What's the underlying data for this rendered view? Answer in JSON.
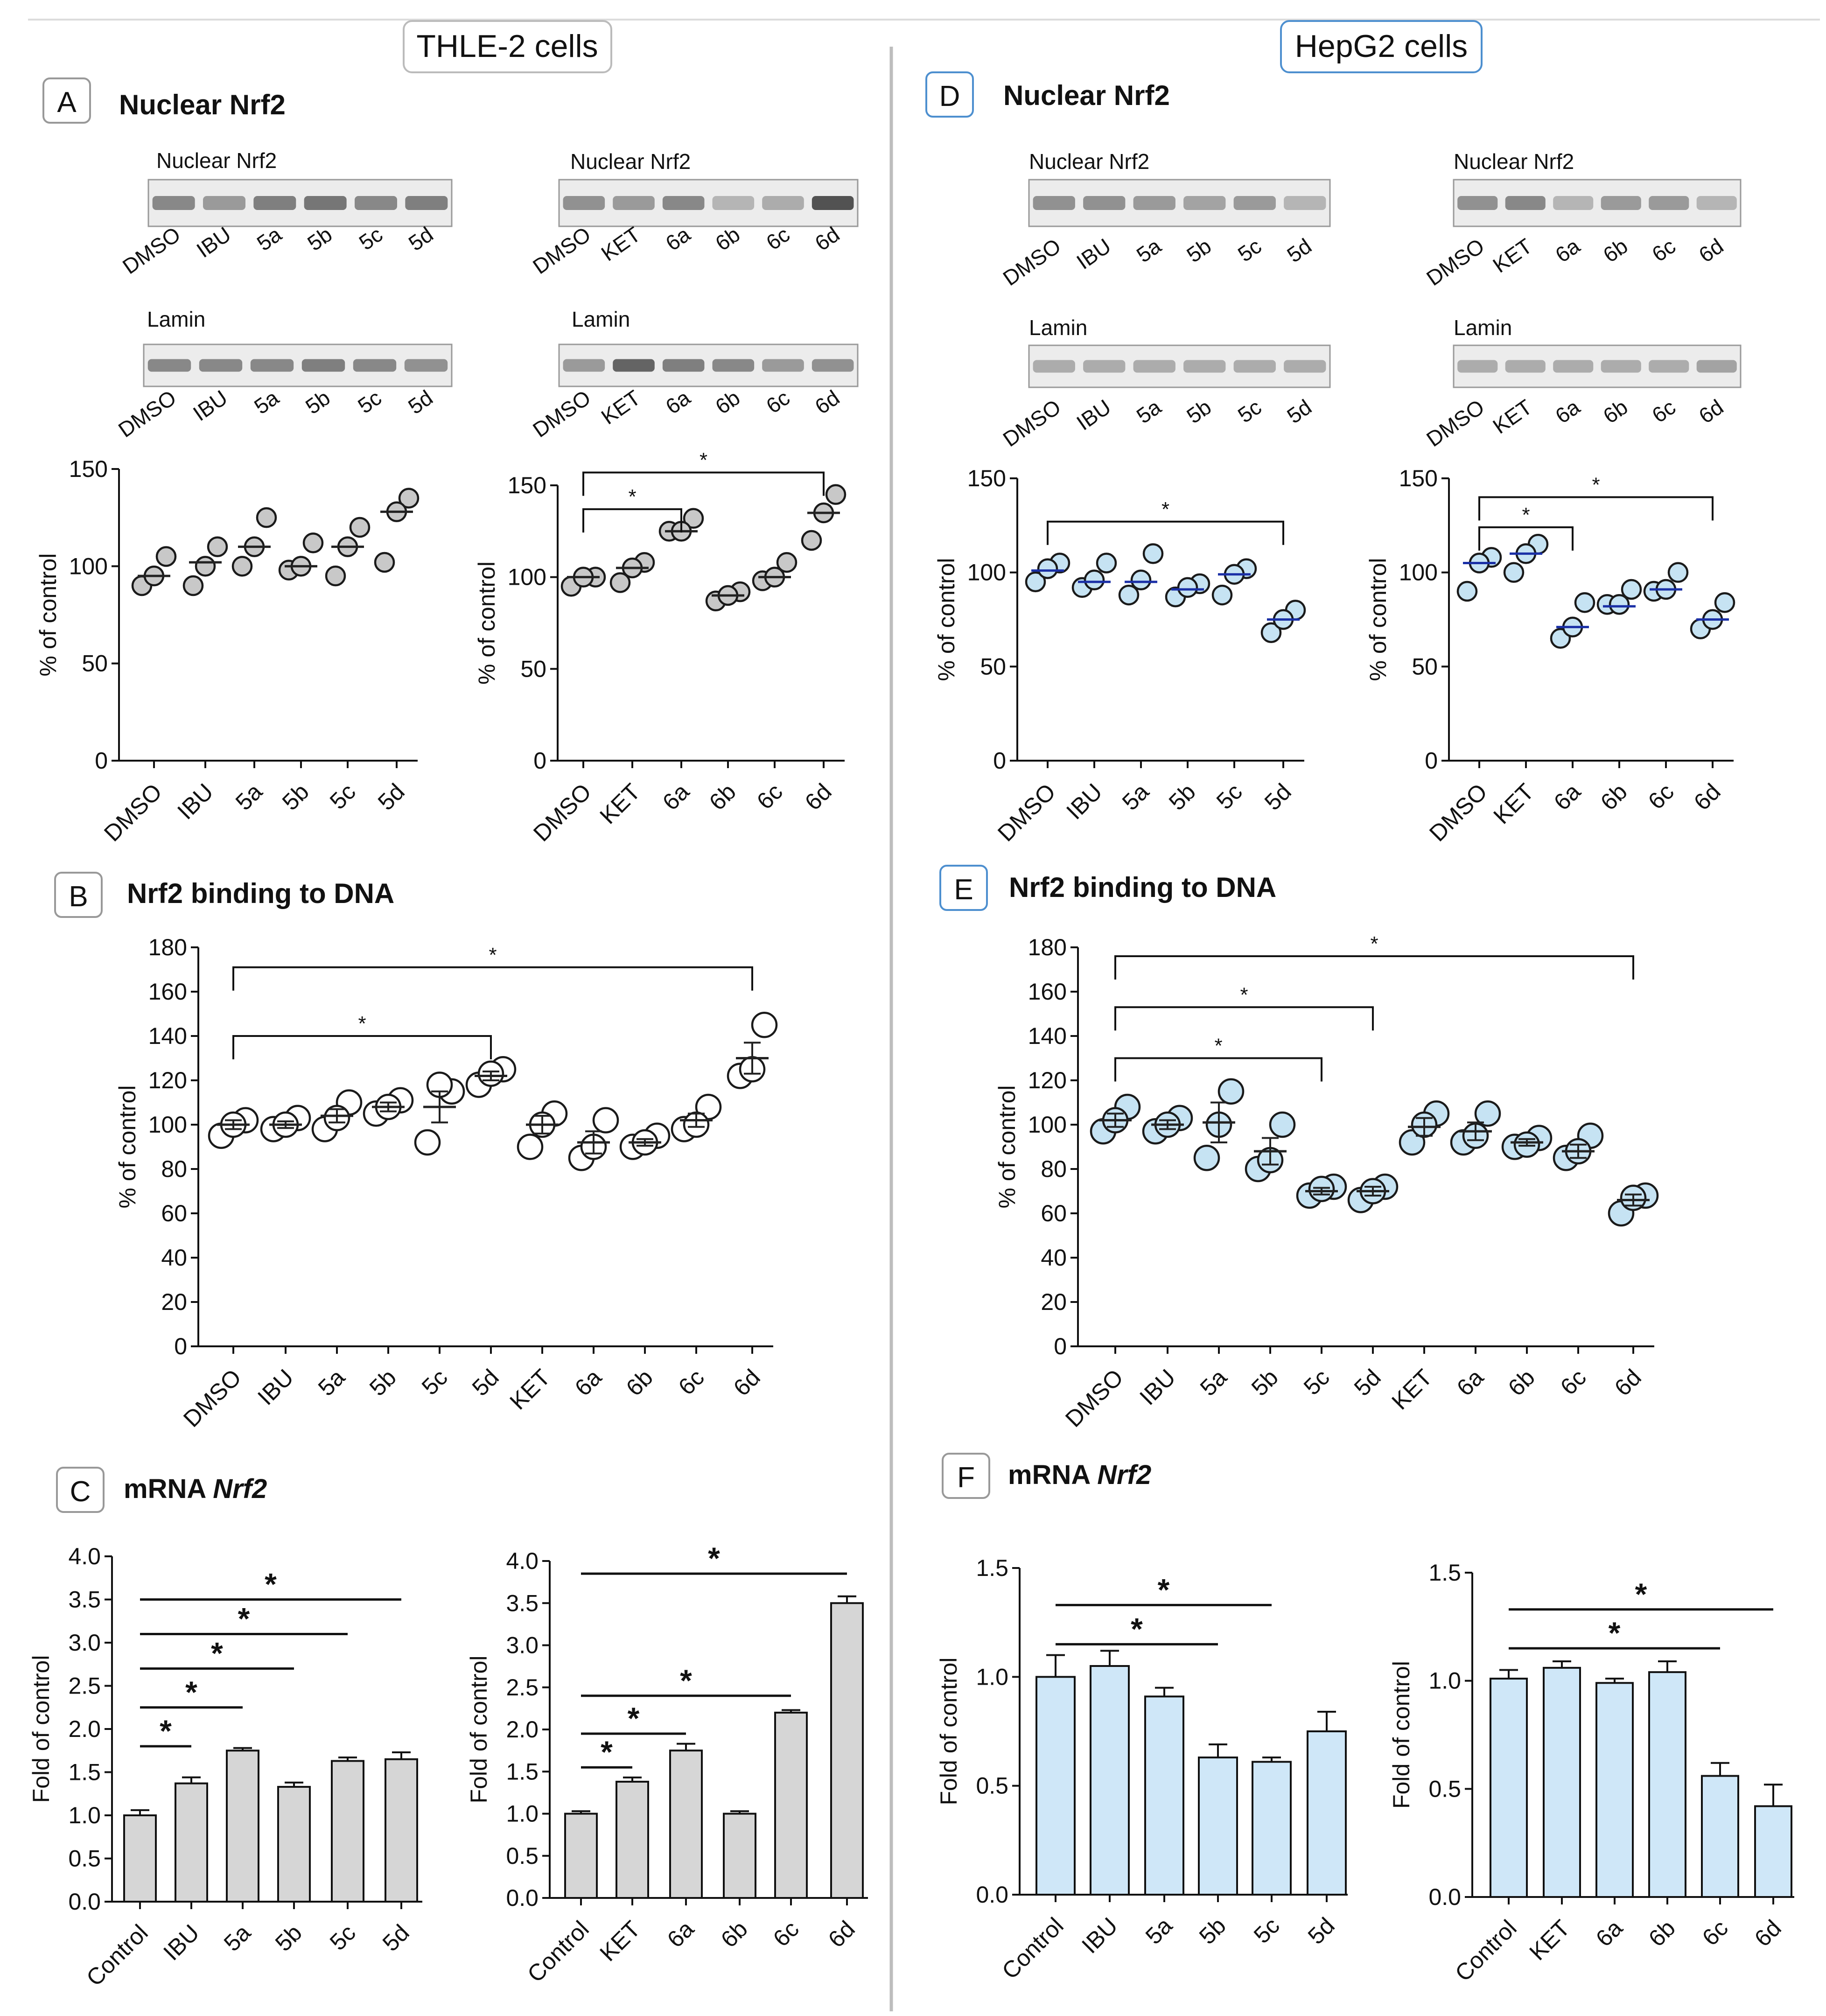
{
  "headers": {
    "left": "THLE-2 cells",
    "right": "HepG2 cells"
  },
  "panels": {
    "A": {
      "letter": "A",
      "title": "Nuclear Nrf2"
    },
    "B": {
      "letter": "B",
      "title": "Nrf2 binding to DNA"
    },
    "C": {
      "letter": "C",
      "title_prefix": "mRNA ",
      "title_italic": "Nrf2"
    },
    "D": {
      "letter": "D",
      "title": "Nuclear Nrf2"
    },
    "E": {
      "letter": "E",
      "title": "Nrf2 binding to DNA"
    },
    "F": {
      "letter": "F",
      "title_prefix": "mRNA ",
      "title_italic": "Nrf2"
    }
  },
  "blots": [
    {
      "label": "Nuclear Nrf2",
      "lanes": [
        "DMSO",
        "IBU",
        "5a",
        "5b",
        "5c",
        "5d"
      ],
      "intensity": [
        0.55,
        0.45,
        0.6,
        0.65,
        0.55,
        0.6
      ]
    },
    {
      "label": "Nuclear Nrf2",
      "lanes": [
        "DMSO",
        "KET",
        "6a",
        "6b",
        "6c",
        "6d"
      ],
      "intensity": [
        0.5,
        0.45,
        0.55,
        0.3,
        0.35,
        0.85
      ]
    },
    {
      "label": "Lamin",
      "lanes": [
        "DMSO",
        "IBU",
        "5a",
        "5b",
        "5c",
        "5d"
      ],
      "intensity": [
        0.55,
        0.55,
        0.55,
        0.6,
        0.55,
        0.5
      ]
    },
    {
      "label": "Lamin",
      "lanes": [
        "DMSO",
        "KET",
        "6a",
        "6b",
        "6c",
        "6d"
      ],
      "intensity": [
        0.45,
        0.75,
        0.6,
        0.55,
        0.45,
        0.5
      ]
    },
    {
      "label": "Nuclear Nrf2",
      "lanes": [
        "DMSO",
        "IBU",
        "5a",
        "5b",
        "5c",
        "5d"
      ],
      "intensity": [
        0.5,
        0.5,
        0.45,
        0.4,
        0.45,
        0.3
      ]
    },
    {
      "label": "Nuclear Nrf2",
      "lanes": [
        "DMSO",
        "KET",
        "6a",
        "6b",
        "6c",
        "6d"
      ],
      "intensity": [
        0.5,
        0.55,
        0.3,
        0.45,
        0.45,
        0.3
      ]
    },
    {
      "label": "Lamin",
      "lanes": [
        "DMSO",
        "IBU",
        "5a",
        "5b",
        "5c",
        "5d"
      ],
      "intensity": [
        0.35,
        0.35,
        0.35,
        0.35,
        0.35,
        0.35
      ]
    },
    {
      "label": "Lamin",
      "lanes": [
        "DMSO",
        "KET",
        "6a",
        "6b",
        "6c",
        "6d"
      ],
      "intensity": [
        0.35,
        0.35,
        0.35,
        0.35,
        0.35,
        0.4
      ]
    }
  ],
  "colors": {
    "grey_point": "#c8c8c8",
    "blue_point": "#c6e3f3",
    "blue_mean": "#1a2fa6",
    "grey_bar": "#d6d6d6",
    "blue_bar": "#cfe7f8",
    "panel_border_blue": "#4d8fcf"
  },
  "chart_data": [
    {
      "id": "A-left",
      "type": "scatter",
      "categories": [
        "DMSO",
        "IBU",
        "5a",
        "5b",
        "5c",
        "5d"
      ],
      "points": [
        [
          90,
          105,
          95
        ],
        [
          90,
          110,
          100
        ],
        [
          100,
          125,
          110
        ],
        [
          98,
          112,
          100
        ],
        [
          95,
          120,
          110
        ],
        [
          102,
          135,
          128
        ]
      ],
      "means": [
        95,
        102,
        110,
        100,
        110,
        128
      ],
      "ylabel": "% of control",
      "ylim": [
        0,
        150
      ],
      "yticks": [
        0,
        50,
        100,
        150
      ],
      "significance": []
    },
    {
      "id": "A-right",
      "type": "scatter",
      "categories": [
        "DMSO",
        "KET",
        "6a",
        "6b",
        "6c",
        "6d"
      ],
      "points": [
        [
          95,
          100,
          100
        ],
        [
          97,
          108,
          105
        ],
        [
          125,
          132,
          125
        ],
        [
          87,
          92,
          90
        ],
        [
          98,
          108,
          100
        ],
        [
          120,
          145,
          135
        ]
      ],
      "means": [
        100,
        105,
        125,
        90,
        100,
        135
      ],
      "ylabel": "% of control",
      "ylim": [
        0,
        150
      ],
      "yticks": [
        0,
        50,
        100,
        150
      ],
      "significance": [
        {
          "from": 0,
          "to": 2,
          "label": "*",
          "y": 137
        },
        {
          "from": 0,
          "to": 5,
          "label": "*",
          "y": 157
        }
      ]
    },
    {
      "id": "D-left",
      "type": "scatter",
      "categories": [
        "DMSO",
        "IBU",
        "5a",
        "5b",
        "5c",
        "5d"
      ],
      "points": [
        [
          95,
          105,
          102
        ],
        [
          92,
          105,
          96
        ],
        [
          88,
          110,
          96
        ],
        [
          87,
          94,
          92
        ],
        [
          88,
          102,
          99
        ],
        [
          68,
          80,
          75
        ]
      ],
      "means": [
        101,
        95,
        95,
        91,
        99,
        75
      ],
      "ylabel": "% of control",
      "ylim": [
        0,
        150
      ],
      "yticks": [
        0,
        50,
        100,
        150
      ],
      "significance": [
        {
          "from": 0,
          "to": 5,
          "label": "*",
          "y": 127
        }
      ]
    },
    {
      "id": "D-right",
      "type": "scatter",
      "categories": [
        "DMSO",
        "KET",
        "6a",
        "6b",
        "6c",
        "6d"
      ],
      "points": [
        [
          90,
          108,
          105
        ],
        [
          100,
          115,
          110
        ],
        [
          65,
          84,
          71
        ],
        [
          83,
          91,
          83
        ],
        [
          90,
          100,
          91
        ],
        [
          70,
          84,
          75
        ]
      ],
      "means": [
        105,
        110,
        71,
        82,
        91,
        75
      ],
      "ylabel": "% of control",
      "ylim": [
        0,
        150
      ],
      "yticks": [
        0,
        50,
        100,
        150
      ],
      "significance": [
        {
          "from": 0,
          "to": 2,
          "label": "*",
          "y": 124
        },
        {
          "from": 0,
          "to": 5,
          "label": "*",
          "y": 140
        }
      ]
    },
    {
      "id": "B",
      "type": "scatter",
      "categories": [
        "DMSO",
        "IBU",
        "5a",
        "5b",
        "5c",
        "5d",
        "KET",
        "6a",
        "6b",
        "6c",
        "6d"
      ],
      "points": [
        [
          95,
          102,
          100
        ],
        [
          98,
          103,
          100
        ],
        [
          98,
          110,
          103
        ],
        [
          105,
          111,
          108
        ],
        [
          92,
          115,
          118
        ],
        [
          118,
          125,
          123
        ],
        [
          90,
          105,
          100
        ],
        [
          85,
          102,
          90
        ],
        [
          90,
          95,
          92
        ],
        [
          98,
          108,
          100
        ],
        [
          122,
          145,
          125
        ]
      ],
      "means": [
        100,
        100,
        104,
        108,
        108,
        122,
        100,
        92,
        92,
        102,
        130
      ],
      "sem": [
        2,
        1.5,
        3,
        2,
        7,
        2,
        4,
        5,
        1.5,
        3,
        7
      ],
      "ylabel": "% of control",
      "ylim": [
        0,
        180
      ],
      "yticks": [
        0,
        20,
        40,
        60,
        80,
        100,
        120,
        140,
        160,
        180
      ],
      "significance": [
        {
          "from": 0,
          "to": 5,
          "label": "*",
          "y": 140
        },
        {
          "from": 0,
          "to": 10,
          "label": "*",
          "y": 171
        }
      ]
    },
    {
      "id": "E",
      "type": "scatter",
      "categories": [
        "DMSO",
        "IBU",
        "5a",
        "5b",
        "5c",
        "5d",
        "KET",
        "6a",
        "6b",
        "6c",
        "6d"
      ],
      "points": [
        [
          97,
          108,
          102
        ],
        [
          97,
          103,
          100
        ],
        [
          85,
          115,
          100
        ],
        [
          80,
          100,
          84
        ],
        [
          68,
          72,
          71
        ],
        [
          66,
          72,
          70
        ],
        [
          92,
          105,
          100
        ],
        [
          92,
          105,
          95
        ],
        [
          90,
          94,
          91
        ],
        [
          85,
          95,
          88
        ],
        [
          60,
          68,
          67
        ]
      ],
      "means": [
        102,
        100,
        101,
        88,
        70,
        70,
        99,
        97,
        92,
        88,
        66
      ],
      "sem": [
        3,
        2,
        9,
        6,
        1.5,
        2,
        4,
        4,
        1.5,
        3,
        2.5
      ],
      "ylabel": "% of control",
      "ylim": [
        0,
        180
      ],
      "yticks": [
        0,
        20,
        40,
        60,
        80,
        100,
        120,
        140,
        160,
        180
      ],
      "significance": [
        {
          "from": 0,
          "to": 4,
          "label": "*",
          "y": 130
        },
        {
          "from": 0,
          "to": 5,
          "label": "*",
          "y": 153
        },
        {
          "from": 0,
          "to": 10,
          "label": "*",
          "y": 176
        }
      ]
    },
    {
      "id": "C-left",
      "type": "bar",
      "categories": [
        "Control",
        "IBU",
        "5a",
        "5b",
        "5c",
        "5d"
      ],
      "values": [
        1.0,
        1.37,
        1.75,
        1.33,
        1.63,
        1.65
      ],
      "err": [
        0.06,
        0.07,
        0.03,
        0.05,
        0.04,
        0.08
      ],
      "ylabel": "Fold of control",
      "ylim": [
        0,
        4
      ],
      "yticks": [
        "0.0",
        "0.5",
        "1.0",
        "1.5",
        "2.0",
        "2.5",
        "3.0",
        "3.5",
        "4.0"
      ],
      "significance": [
        {
          "from": 0,
          "to": 1,
          "label": "*",
          "y": 1.8
        },
        {
          "from": 0,
          "to": 2,
          "label": "*",
          "y": 2.25
        },
        {
          "from": 0,
          "to": 3,
          "label": "*",
          "y": 2.7
        },
        {
          "from": 0,
          "to": 4,
          "label": "*",
          "y": 3.1
        },
        {
          "from": 0,
          "to": 5,
          "label": "*",
          "y": 3.5
        }
      ]
    },
    {
      "id": "C-right",
      "type": "bar",
      "categories": [
        "Control",
        "KET",
        "6a",
        "6b",
        "6c",
        "6d"
      ],
      "values": [
        1.0,
        1.38,
        1.75,
        1.0,
        2.2,
        3.5
      ],
      "err": [
        0.03,
        0.05,
        0.08,
        0.03,
        0.03,
        0.08
      ],
      "ylabel": "Fold of control",
      "ylim": [
        0,
        4
      ],
      "yticks": [
        "0.0",
        "0.5",
        "1.0",
        "1.5",
        "2.0",
        "2.5",
        "3.0",
        "3.5",
        "4.0"
      ],
      "significance": [
        {
          "from": 0,
          "to": 1,
          "label": "*",
          "y": 1.55
        },
        {
          "from": 0,
          "to": 2,
          "label": "*",
          "y": 1.95
        },
        {
          "from": 0,
          "to": 4,
          "label": "*",
          "y": 2.4
        },
        {
          "from": 0,
          "to": 5,
          "label": "*",
          "y": 3.85
        }
      ]
    },
    {
      "id": "F-left",
      "type": "bar",
      "categories": [
        "Control",
        "IBU",
        "5a",
        "5b",
        "5c",
        "5d"
      ],
      "values": [
        1.0,
        1.05,
        0.91,
        0.63,
        0.61,
        0.75
      ],
      "err": [
        0.1,
        0.07,
        0.04,
        0.06,
        0.02,
        0.09
      ],
      "ylabel": "Fold of control",
      "ylim": [
        0,
        1.5
      ],
      "yticks": [
        "0.0",
        "0.5",
        "1.0",
        "1.5"
      ],
      "significance": [
        {
          "from": 0,
          "to": 3,
          "label": "*",
          "y": 1.15
        },
        {
          "from": 0,
          "to": 4,
          "label": "*",
          "y": 1.33
        }
      ]
    },
    {
      "id": "F-right",
      "type": "bar",
      "categories": [
        "Control",
        "KET",
        "6a",
        "6b",
        "6c",
        "6d"
      ],
      "values": [
        1.01,
        1.06,
        0.99,
        1.04,
        0.56,
        0.42
      ],
      "err": [
        0.04,
        0.03,
        0.02,
        0.05,
        0.06,
        0.1
      ],
      "ylabel": "Fold of control",
      "ylim": [
        0,
        1.5
      ],
      "yticks": [
        "0.0",
        "0.5",
        "1.0",
        "1.5"
      ],
      "significance": [
        {
          "from": 0,
          "to": 4,
          "label": "*",
          "y": 1.15
        },
        {
          "from": 0,
          "to": 5,
          "label": "*",
          "y": 1.33
        }
      ]
    }
  ]
}
